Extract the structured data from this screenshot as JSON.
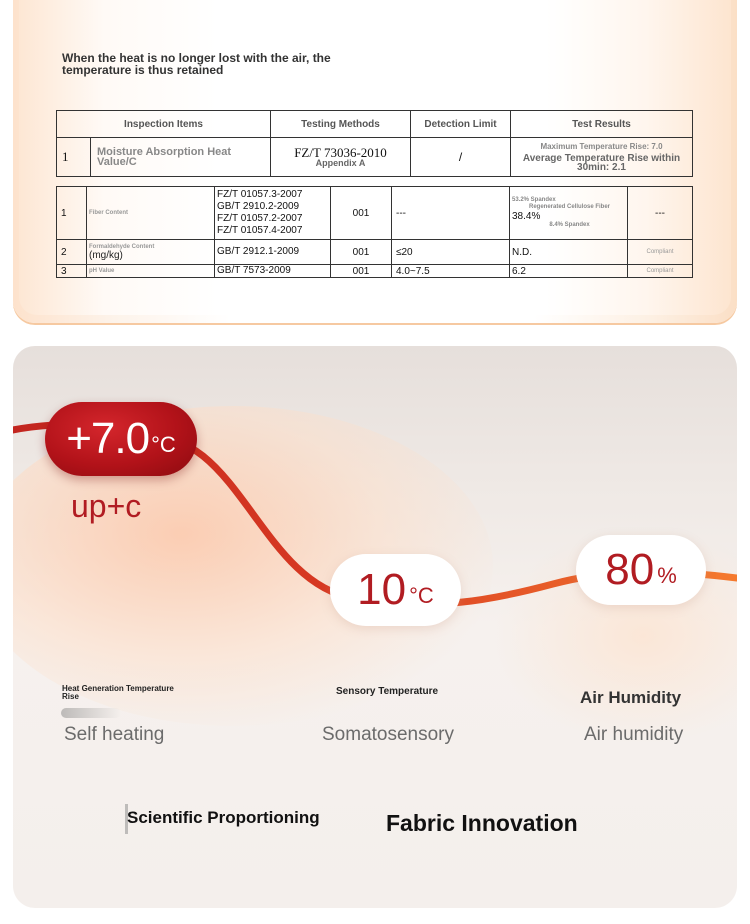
{
  "top": {
    "caption": "When the heat is no longer lost with the air, the temperature is thus retained",
    "table1": {
      "headers": [
        "Inspection Items",
        "Testing Methods",
        "Detection Limit",
        "Test Results"
      ],
      "row": {
        "index": "1",
        "item": "Moisture Absorption Heat Value/C",
        "method": "FZ/T 73036-2010",
        "method_note": "Appendix A",
        "limit": "/",
        "result_1": "Maximum Temperature Rise: 7.0",
        "result_2": "Average Temperature Rise within 30min: 2.1"
      }
    },
    "table2": {
      "rows": [
        {
          "index": "1",
          "item": "Fiber Content",
          "unit": "",
          "methods": "FZ/T 01057.3-2007\nGB/T 2910.2-2009\nFZ/T 01057.2-2007\nFZ/T 01057.4-2007",
          "sample": "001",
          "limit": "---",
          "result_top": "53.2% Spandex",
          "result_mid": "Regenerated Cellulose Fiber",
          "result_val": "38.4%",
          "result_bot": "8.4% Spandex",
          "verdict": "---"
        },
        {
          "index": "2",
          "item": "Formaldehyde Content",
          "unit": "(mg/kg)",
          "methods": "GB/T 2912.1-2009",
          "sample": "001",
          "limit": "≤20",
          "result_val": "N.D.",
          "verdict": "Compliant"
        },
        {
          "index": "3",
          "item": "pH Value",
          "unit": "",
          "methods": "GB/T 7573-2009",
          "sample": "001",
          "limit": "4.0~7.5",
          "result_val": "6.2",
          "verdict": "Compliant"
        }
      ]
    }
  },
  "bottom": {
    "pill1": {
      "value": "+7.0",
      "unit": "°C"
    },
    "pill1_sub": "up+c",
    "pill2": {
      "value": "10",
      "unit": "°C"
    },
    "pill3": {
      "value": "80",
      "unit": "%"
    },
    "col1": {
      "small": "Heat Generation Temperature Rise",
      "label": "Self heating"
    },
    "col2": {
      "small": "Sensory Temperature",
      "label": "Somatosensory"
    },
    "col3": {
      "small": "Air Humidity",
      "label": "Air humidity"
    },
    "left_title": "Scientific Proportioning",
    "right_title": "Fabric Innovation",
    "colors": {
      "accent_red": "#b11c22",
      "curve_orange": "#f0682a"
    }
  }
}
